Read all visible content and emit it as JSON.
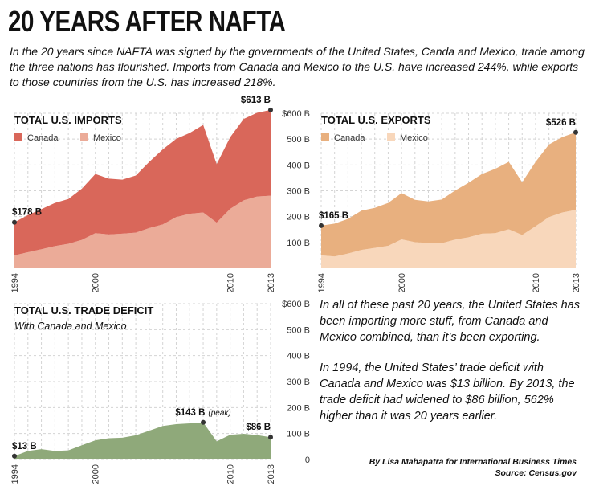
{
  "title": "20 YEARS AFTER NAFTA",
  "intro": "In the 20 years since NAFTA was signed by the governments of the United States, Canda and Mexico, trade among the three nations has flourished. Imports from Canada and Mexico to the U.S. have increased 244%, while exports to those countries from the U.S. has increased 218%.",
  "notes": [
    "In all of these past 20 years, the United States has been importing more stuff, from Canada and Mexico combined, than it’s been exporting.",
    "In 1994, the United States’ trade deficit with Canada and Mexico was $13 billion. By 2013, the trade deficit had widened to $86 billion, 562% higher than it was 20 years earlier."
  ],
  "byline": "By Lisa Mahapatra for International Business Times",
  "source": "Source: Census.gov",
  "chart_data": [
    {
      "type": "area",
      "stacked": true,
      "title": "TOTAL U.S. IMPORTS",
      "x": [
        1994,
        1995,
        1996,
        1997,
        1998,
        1999,
        2000,
        2001,
        2002,
        2003,
        2004,
        2005,
        2006,
        2007,
        2008,
        2009,
        2010,
        2011,
        2012,
        2013
      ],
      "series": [
        {
          "name": "Canada",
          "color": "#d9675a",
          "values": [
            128,
            144,
            155,
            167,
            173,
            198,
            229,
            216,
            209,
            221,
            256,
            290,
            303,
            313,
            339,
            226,
            277,
            315,
            324,
            332
          ]
        },
        {
          "name": "Mexico",
          "color": "#ebab98",
          "values": [
            50,
            62,
            74,
            86,
            95,
            110,
            136,
            131,
            134,
            138,
            156,
            170,
            198,
            211,
            216,
            177,
            230,
            263,
            278,
            281
          ]
        }
      ],
      "xlim": [
        1994,
        2013
      ],
      "xticks": [
        1994,
        2000,
        2010,
        2013
      ],
      "ylim": [
        0,
        600
      ],
      "yticks": [
        {
          "value": 100,
          "label": "100 B"
        },
        {
          "value": 200,
          "label": "200 B"
        },
        {
          "value": 300,
          "label": "300 B"
        },
        {
          "value": 400,
          "label": "400 B"
        },
        {
          "value": 500,
          "label": "500 B"
        },
        {
          "value": 600,
          "label": "$600 B"
        }
      ],
      "show_tick_labels": true,
      "grid": true,
      "annotations": [
        {
          "text": "$178 B",
          "x": 1994,
          "y": 178
        },
        {
          "text": "$613 B",
          "x": 2013,
          "y": 613
        }
      ]
    },
    {
      "type": "area",
      "stacked": true,
      "title": "TOTAL U.S. EXPORTS",
      "x": [
        1994,
        1995,
        1996,
        1997,
        1998,
        1999,
        2000,
        2001,
        2002,
        2003,
        2004,
        2005,
        2006,
        2007,
        2008,
        2009,
        2010,
        2011,
        2012,
        2013
      ],
      "series": [
        {
          "name": "Canada",
          "color": "#e8b07f",
          "values": [
            115,
            127,
            134,
            152,
            155,
            166,
            179,
            164,
            161,
            169,
            190,
            211,
            231,
            249,
            261,
            204,
            249,
            281,
            292,
            300
          ]
        },
        {
          "name": "Mexico",
          "color": "#f8d7bb",
          "values": [
            50,
            46,
            57,
            71,
            79,
            87,
            112,
            101,
            98,
            97,
            111,
            120,
            134,
            136,
            151,
            129,
            163,
            198,
            216,
            226
          ]
        }
      ],
      "xlim": [
        1994,
        2013
      ],
      "xticks": [
        1994,
        2000,
        2010,
        2013
      ],
      "ylim": [
        0,
        600
      ],
      "yticks": [
        100,
        200,
        300,
        400,
        500,
        600
      ],
      "show_tick_labels": false,
      "grid": true,
      "annotations": [
        {
          "text": "$165 B",
          "x": 1994,
          "y": 165
        },
        {
          "text": "$526 B",
          "x": 2013,
          "y": 526
        }
      ]
    },
    {
      "type": "area",
      "stacked": false,
      "title": "TOTAL U.S. TRADE DEFICIT",
      "subtitle": "With Canada and Mexico",
      "x": [
        1994,
        1995,
        1996,
        1997,
        1998,
        1999,
        2000,
        2001,
        2002,
        2003,
        2004,
        2005,
        2006,
        2007,
        2008,
        2009,
        2010,
        2011,
        2012,
        2013
      ],
      "values": [
        13,
        33,
        40,
        33,
        35,
        55,
        74,
        82,
        84,
        93,
        111,
        129,
        136,
        139,
        143,
        70,
        95,
        99,
        94,
        86
      ],
      "color": "#8fa97a",
      "xlim": [
        1994,
        2013
      ],
      "xticks": [
        1994,
        2000,
        2010,
        2013
      ],
      "ylim": [
        0,
        600
      ],
      "yticks": [
        0,
        {
          "value": 100,
          "label": "100 B"
        },
        {
          "value": 200,
          "label": "200 B"
        },
        {
          "value": 300,
          "label": "300 B"
        },
        {
          "value": 400,
          "label": "400 B"
        },
        {
          "value": 500,
          "label": "500 B"
        },
        {
          "value": 600,
          "label": "$600 B"
        }
      ],
      "show_tick_labels": true,
      "grid": true,
      "annotations": [
        {
          "text": "$13 B",
          "x": 1994,
          "y": 13
        },
        {
          "text": "$143 B",
          "note": "(peak)",
          "x": 2008,
          "y": 143
        },
        {
          "text": "$86 B",
          "x": 2013,
          "y": 86
        }
      ]
    }
  ]
}
